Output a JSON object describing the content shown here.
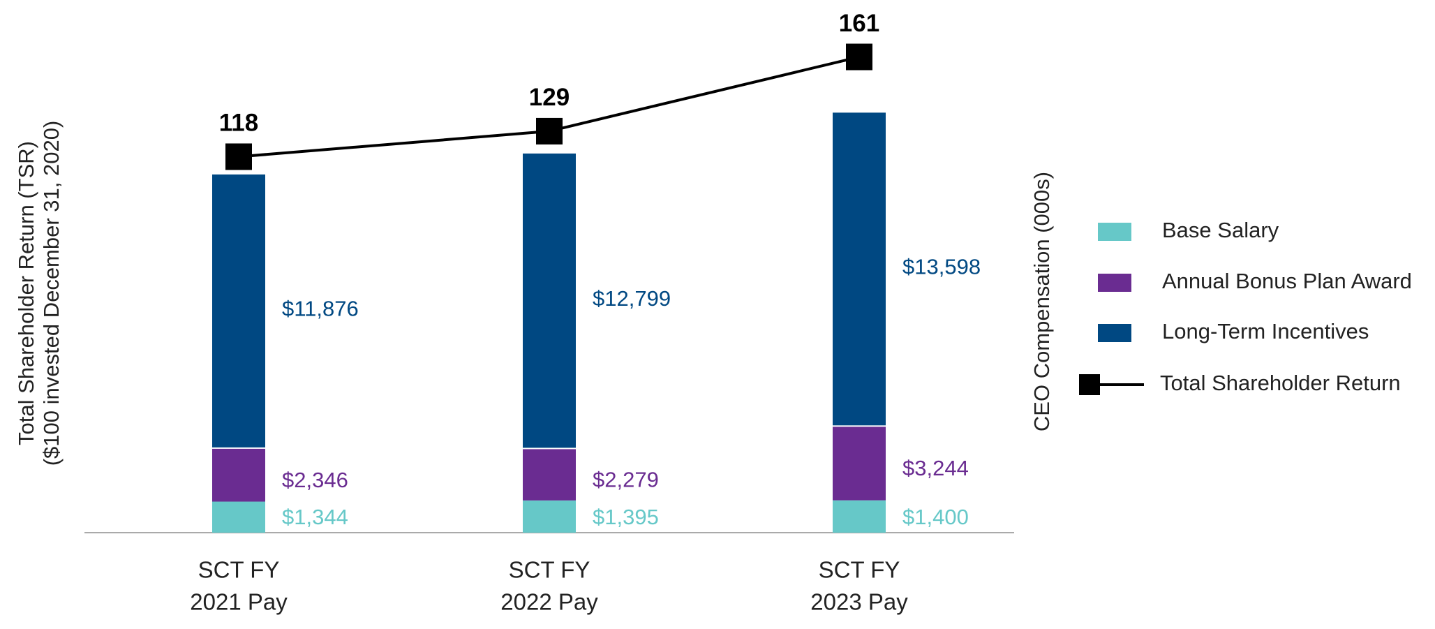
{
  "chart_data": {
    "type": "bar-line",
    "categories": [
      [
        "SCT FY",
        "2021 Pay"
      ],
      [
        "SCT FY",
        "2022 Pay"
      ],
      [
        "SCT FY",
        "2023 Pay"
      ]
    ],
    "ylabel": "CEO Compensation (000s)",
    "y2label": [
      "Total Shareholder Return (TSR)",
      "($100 invested December 31, 2020)"
    ],
    "ylim": [
      0,
      22000
    ],
    "y2lim": [
      -44,
      175
    ],
    "series": [
      {
        "name": "Base Salary",
        "color": "#66c8c8",
        "values": [
          1344,
          1395,
          1400
        ],
        "value_labels": [
          "$1,344",
          "$1,395",
          "$1,400"
        ]
      },
      {
        "name": "Annual Bonus Plan Award",
        "color": "#6a2c91",
        "values": [
          2346,
          2279,
          3244
        ],
        "value_labels": [
          "$2,346",
          "$2,279",
          "$3,244"
        ]
      },
      {
        "name": "Long-Term Incentives",
        "color": "#004882",
        "values": [
          11876,
          12799,
          13598
        ],
        "value_labels": [
          "$11,876",
          "$12,799",
          "$13,598"
        ]
      },
      {
        "name": "Total Shareholder Return",
        "color": "#000000",
        "type": "line",
        "axis": "y2",
        "values": [
          118,
          129,
          161
        ]
      }
    ]
  }
}
